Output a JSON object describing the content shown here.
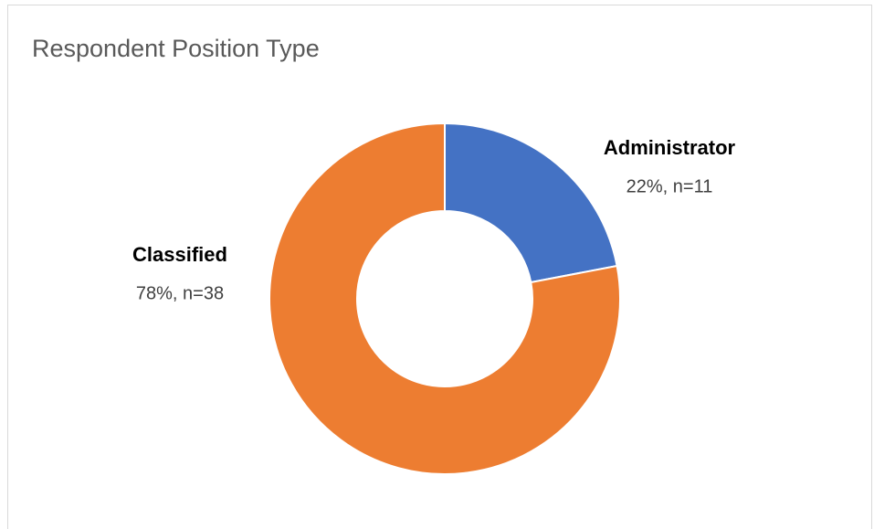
{
  "chart_data": {
    "type": "donut",
    "title": "Respondent Position Type",
    "categories": [
      "Administrator",
      "Classified"
    ],
    "values": [
      22,
      78
    ],
    "value_labels": [
      "22%, n=11",
      "78%, n=38"
    ],
    "colors": [
      "#4472c4",
      "#ed7d31"
    ]
  }
}
